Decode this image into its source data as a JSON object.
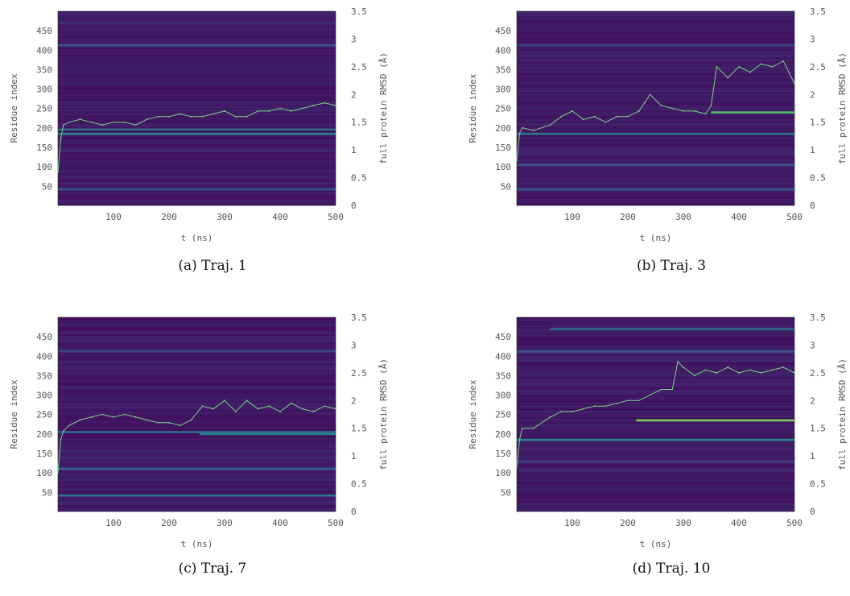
{
  "chart_data": [
    {
      "type": "heatmap",
      "caption": "(a) Traj. 1",
      "xlabel": "t (ns)",
      "ylabel": "Residue index",
      "y2label": "full protein RMSD (Å)",
      "xlim": [
        0,
        500
      ],
      "ylim": [
        1,
        500
      ],
      "y2lim": [
        0,
        3.5
      ],
      "xticks": [
        100,
        200,
        300,
        400,
        500
      ],
      "yticks": [
        50,
        100,
        150,
        200,
        250,
        300,
        350,
        400,
        450
      ],
      "y2ticks": [
        0,
        0.5,
        1,
        1.5,
        2,
        2.5,
        3,
        3.5
      ],
      "bright_bands": [
        {
          "residue": 185,
          "t_start": 0,
          "t_end": 500,
          "intensity": 0.45
        },
        {
          "residue": 196,
          "t_start": 0,
          "t_end": 500,
          "intensity": 0.35
        },
        {
          "residue": 413,
          "t_start": 0,
          "t_end": 500,
          "intensity": 0.25
        },
        {
          "residue": 42,
          "t_start": 0,
          "t_end": 500,
          "intensity": 0.25
        },
        {
          "residue": 470,
          "t_start": 0,
          "t_end": 500,
          "intensity": 0.15
        }
      ],
      "rmsd_series": {
        "name": "",
        "t": [
          0,
          5,
          10,
          20,
          40,
          60,
          80,
          100,
          120,
          140,
          160,
          180,
          200,
          220,
          240,
          260,
          280,
          300,
          320,
          340,
          360,
          380,
          400,
          420,
          440,
          460,
          480,
          500
        ],
        "rmsd": [
          0.6,
          1.2,
          1.45,
          1.5,
          1.55,
          1.5,
          1.45,
          1.5,
          1.5,
          1.45,
          1.55,
          1.6,
          1.6,
          1.65,
          1.6,
          1.6,
          1.65,
          1.7,
          1.6,
          1.6,
          1.7,
          1.7,
          1.75,
          1.7,
          1.75,
          1.8,
          1.85,
          1.8
        ]
      }
    },
    {
      "type": "heatmap",
      "caption": "(b) Traj. 3",
      "xlabel": "t (ns)",
      "ylabel": "Residue index",
      "y2label": "full protein RMSD (Å)",
      "xlim": [
        0,
        500
      ],
      "ylim": [
        1,
        500
      ],
      "y2lim": [
        0,
        3.5
      ],
      "xticks": [
        100,
        200,
        300,
        400,
        500
      ],
      "yticks": [
        50,
        100,
        150,
        200,
        250,
        300,
        350,
        400,
        450
      ],
      "y2ticks": [
        0,
        0.5,
        1,
        1.5,
        2,
        2.5,
        3,
        3.5
      ],
      "bright_bands": [
        {
          "residue": 185,
          "t_start": 0,
          "t_end": 500,
          "intensity": 0.4
        },
        {
          "residue": 240,
          "t_start": 350,
          "t_end": 500,
          "intensity": 0.7
        },
        {
          "residue": 105,
          "t_start": 0,
          "t_end": 500,
          "intensity": 0.25
        },
        {
          "residue": 42,
          "t_start": 0,
          "t_end": 500,
          "intensity": 0.25
        },
        {
          "residue": 413,
          "t_start": 0,
          "t_end": 500,
          "intensity": 0.2
        }
      ],
      "rmsd_series": {
        "name": "",
        "t": [
          0,
          5,
          10,
          30,
          60,
          80,
          100,
          120,
          140,
          160,
          180,
          200,
          220,
          230,
          240,
          260,
          280,
          300,
          320,
          340,
          350,
          360,
          380,
          400,
          420,
          440,
          460,
          480,
          500
        ],
        "rmsd": [
          0.8,
          1.3,
          1.4,
          1.35,
          1.45,
          1.6,
          1.7,
          1.55,
          1.6,
          1.5,
          1.6,
          1.6,
          1.7,
          1.85,
          2.0,
          1.8,
          1.75,
          1.7,
          1.7,
          1.65,
          1.8,
          2.5,
          2.3,
          2.5,
          2.4,
          2.55,
          2.5,
          2.6,
          2.2
        ]
      }
    },
    {
      "type": "heatmap",
      "caption": "(c) Traj. 7",
      "xlabel": "t (ns)",
      "ylabel": "Residue index",
      "y2label": "full protein RMSD (Å)",
      "xlim": [
        0,
        500
      ],
      "ylim": [
        1,
        500
      ],
      "y2lim": [
        0,
        3.5
      ],
      "xticks": [
        100,
        200,
        300,
        400,
        500
      ],
      "yticks": [
        50,
        100,
        150,
        200,
        250,
        300,
        350,
        400,
        450
      ],
      "y2ticks": [
        0,
        0.5,
        1,
        1.5,
        2,
        2.5,
        3,
        3.5
      ],
      "bright_bands": [
        {
          "residue": 205,
          "t_start": 0,
          "t_end": 500,
          "intensity": 0.35
        },
        {
          "residue": 200,
          "t_start": 255,
          "t_end": 500,
          "intensity": 0.45
        },
        {
          "residue": 42,
          "t_start": 0,
          "t_end": 500,
          "intensity": 0.4
        },
        {
          "residue": 110,
          "t_start": 0,
          "t_end": 500,
          "intensity": 0.3
        },
        {
          "residue": 413,
          "t_start": 0,
          "t_end": 500,
          "intensity": 0.2
        }
      ],
      "rmsd_series": {
        "name": "",
        "t": [
          0,
          5,
          10,
          20,
          40,
          60,
          80,
          100,
          120,
          140,
          160,
          180,
          200,
          220,
          240,
          260,
          280,
          300,
          320,
          340,
          360,
          380,
          400,
          420,
          440,
          460,
          480,
          500
        ],
        "rmsd": [
          0.7,
          1.3,
          1.45,
          1.55,
          1.65,
          1.7,
          1.75,
          1.7,
          1.75,
          1.7,
          1.65,
          1.6,
          1.6,
          1.55,
          1.65,
          1.9,
          1.85,
          2.0,
          1.8,
          2.0,
          1.85,
          1.9,
          1.8,
          1.95,
          1.85,
          1.8,
          1.9,
          1.85
        ]
      }
    },
    {
      "type": "heatmap",
      "caption": "(d) Traj. 10",
      "xlabel": "t (ns)",
      "ylabel": "Residue index",
      "y2label": "full protein RMSD (Å)",
      "xlim": [
        0,
        500
      ],
      "ylim": [
        1,
        500
      ],
      "y2lim": [
        0,
        3.5
      ],
      "xticks": [
        100,
        200,
        300,
        400,
        500
      ],
      "yticks": [
        50,
        100,
        150,
        200,
        250,
        300,
        350,
        400,
        450
      ],
      "y2ticks": [
        0,
        0.5,
        1,
        1.5,
        2,
        2.5,
        3,
        3.5
      ],
      "bright_bands": [
        {
          "residue": 235,
          "t_start": 215,
          "t_end": 500,
          "intensity": 0.8
        },
        {
          "residue": 185,
          "t_start": 0,
          "t_end": 500,
          "intensity": 0.45
        },
        {
          "residue": 470,
          "t_start": 60,
          "t_end": 500,
          "intensity": 0.35
        },
        {
          "residue": 412,
          "t_start": 0,
          "t_end": 500,
          "intensity": 0.25
        },
        {
          "residue": 130,
          "t_start": 0,
          "t_end": 500,
          "intensity": 0.2
        }
      ],
      "rmsd_series": {
        "name": "",
        "t": [
          0,
          5,
          10,
          30,
          60,
          80,
          100,
          120,
          140,
          160,
          180,
          200,
          220,
          240,
          260,
          280,
          290,
          300,
          320,
          340,
          360,
          380,
          400,
          420,
          440,
          460,
          480,
          500
        ],
        "rmsd": [
          0.8,
          1.3,
          1.5,
          1.5,
          1.7,
          1.8,
          1.8,
          1.85,
          1.9,
          1.9,
          1.95,
          2.0,
          2.0,
          2.1,
          2.2,
          2.2,
          2.7,
          2.6,
          2.45,
          2.55,
          2.5,
          2.6,
          2.5,
          2.55,
          2.5,
          2.55,
          2.6,
          2.5
        ]
      }
    }
  ]
}
